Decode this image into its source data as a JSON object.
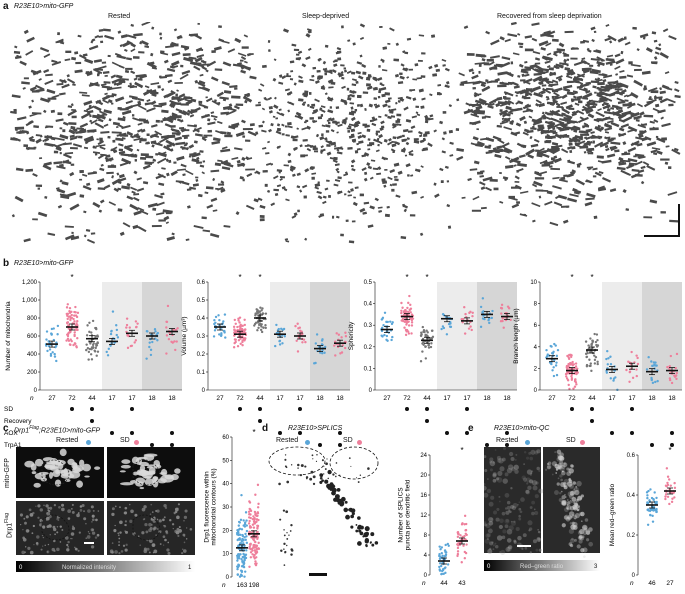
{
  "panel_a": {
    "letter": "a",
    "genotype": "R23E10>mito-GFP",
    "images": [
      {
        "title": "Rested"
      },
      {
        "title": "Sleep-deprived"
      },
      {
        "title": "Recovered from sleep deprivation"
      }
    ]
  },
  "panel_b": {
    "letter": "b",
    "genotype": "R23E10>mito-GFP",
    "row_labels": [
      "n",
      "SD",
      "Recovery",
      "AOX",
      "TrpA1"
    ],
    "conditions": [
      {
        "n": "27",
        "SD": false,
        "Recovery": false,
        "AOX": false,
        "TrpA1": false
      },
      {
        "n": "72",
        "SD": true,
        "Recovery": false,
        "AOX": false,
        "TrpA1": false
      },
      {
        "n": "44",
        "SD": true,
        "Recovery": true,
        "AOX": false,
        "TrpA1": false
      },
      {
        "n": "17",
        "SD": false,
        "Recovery": false,
        "AOX": true,
        "TrpA1": false
      },
      {
        "n": "17",
        "SD": true,
        "Recovery": false,
        "AOX": true,
        "TrpA1": false
      },
      {
        "n": "18",
        "SD": false,
        "Recovery": false,
        "AOX": false,
        "TrpA1": true
      },
      {
        "n": "18",
        "SD": false,
        "Recovery": false,
        "AOX": true,
        "TrpA1": true
      }
    ]
  },
  "panel_c": {
    "letter": "c",
    "genotype_prefix": "Drp1",
    "genotype_sup": "Flag",
    "genotype_suffix": ";R23E10>mito-GFP",
    "legend_rested": "Rested",
    "legend_sd": "SD",
    "row1": "mito-GFP",
    "row2_prefix": "Drp1",
    "row2_sup": "Flag",
    "colorbar_min": "0",
    "colorbar_label": "Normalized intensity",
    "colorbar_max": "1"
  },
  "panel_d": {
    "letter": "d",
    "genotype": "R23E10>SPLICS",
    "legend_rested": "Rested",
    "legend_sd": "SD"
  },
  "panel_e": {
    "letter": "e",
    "genotype": "R23E10>mito-QC",
    "legend_rested": "Rested",
    "legend_sd": "SD",
    "colorbar_min": "0",
    "colorbar_label": "Red–green ratio",
    "colorbar_max": "3"
  },
  "colors": {
    "rested": "#5aa6d8",
    "sd": "#ee7f9b",
    "recovery": "#777777",
    "mean": "#111111",
    "shade_light": "#ececec",
    "shade_dark": "#d6d6d6"
  },
  "chart_data": [
    {
      "type": "scatter",
      "panel": "b",
      "ylabel": "Number of mitochondria",
      "ylim": [
        0,
        1200
      ],
      "yticks": [
        "0",
        "200",
        "400",
        "600",
        "800",
        "1,000",
        "1,200"
      ],
      "means": [
        510,
        700,
        570,
        540,
        630,
        600,
        650
      ],
      "star": [
        false,
        true,
        false,
        false,
        false,
        false,
        false
      ]
    },
    {
      "type": "scatter",
      "panel": "b",
      "ylabel": "Volume (µm³)",
      "ylim": [
        0,
        0.6
      ],
      "yticks": [
        "0",
        "0.1",
        "0.2",
        "0.3",
        "0.4",
        "0.5",
        "0.6"
      ],
      "means": [
        0.35,
        0.31,
        0.4,
        0.31,
        0.3,
        0.23,
        0.26
      ],
      "star": [
        false,
        true,
        true,
        false,
        false,
        false,
        false
      ]
    },
    {
      "type": "scatter",
      "panel": "b",
      "ylabel": "Sphericity",
      "ylim": [
        0,
        0.5
      ],
      "yticks": [
        "0",
        "0.1",
        "0.2",
        "0.3",
        "0.4",
        "0.5"
      ],
      "means": [
        0.28,
        0.34,
        0.23,
        0.33,
        0.32,
        0.35,
        0.34
      ],
      "star": [
        false,
        true,
        true,
        false,
        false,
        false,
        false
      ]
    },
    {
      "type": "scatter",
      "panel": "b",
      "ylabel": "Branch length (µm)",
      "ylim": [
        0,
        10
      ],
      "yticks": [
        "0",
        "2",
        "4",
        "6",
        "8",
        "10"
      ],
      "means": [
        2.9,
        1.8,
        3.7,
        1.9,
        2.2,
        1.7,
        1.8
      ],
      "star": [
        false,
        true,
        true,
        false,
        false,
        false,
        false
      ]
    },
    {
      "type": "scatter",
      "panel": "c",
      "ylabel": "Drp1 fluorescence within mitochondrial contours (%)",
      "ylim": [
        0,
        60
      ],
      "yticks": [
        "0",
        "10",
        "20",
        "30",
        "40",
        "50",
        "60"
      ],
      "categories": [
        "Rested",
        "SD"
      ],
      "n": [
        "163",
        "198"
      ],
      "means": [
        12.5,
        18.5
      ],
      "star": [
        false,
        true
      ]
    },
    {
      "type": "scatter",
      "panel": "d",
      "ylabel": "Number of SPLICS puncta per dendritic field",
      "ylim": [
        0,
        24
      ],
      "yticks": [
        "0",
        "4",
        "8",
        "12",
        "16",
        "20",
        "24"
      ],
      "categories": [
        "Rested",
        "SD"
      ],
      "n": [
        "44",
        "43"
      ],
      "means": [
        2.8,
        6.8
      ],
      "star": [
        false,
        true
      ]
    },
    {
      "type": "scatter",
      "panel": "e",
      "ylabel": "Mean red–green ratio",
      "ylim": [
        0,
        0.6
      ],
      "yticks": [
        "0",
        "0.2",
        "0.4",
        "0.6"
      ],
      "categories": [
        "Rested",
        "SD"
      ],
      "n": [
        "46",
        "27"
      ],
      "means": [
        0.35,
        0.42
      ],
      "star": [
        false,
        true
      ]
    }
  ]
}
